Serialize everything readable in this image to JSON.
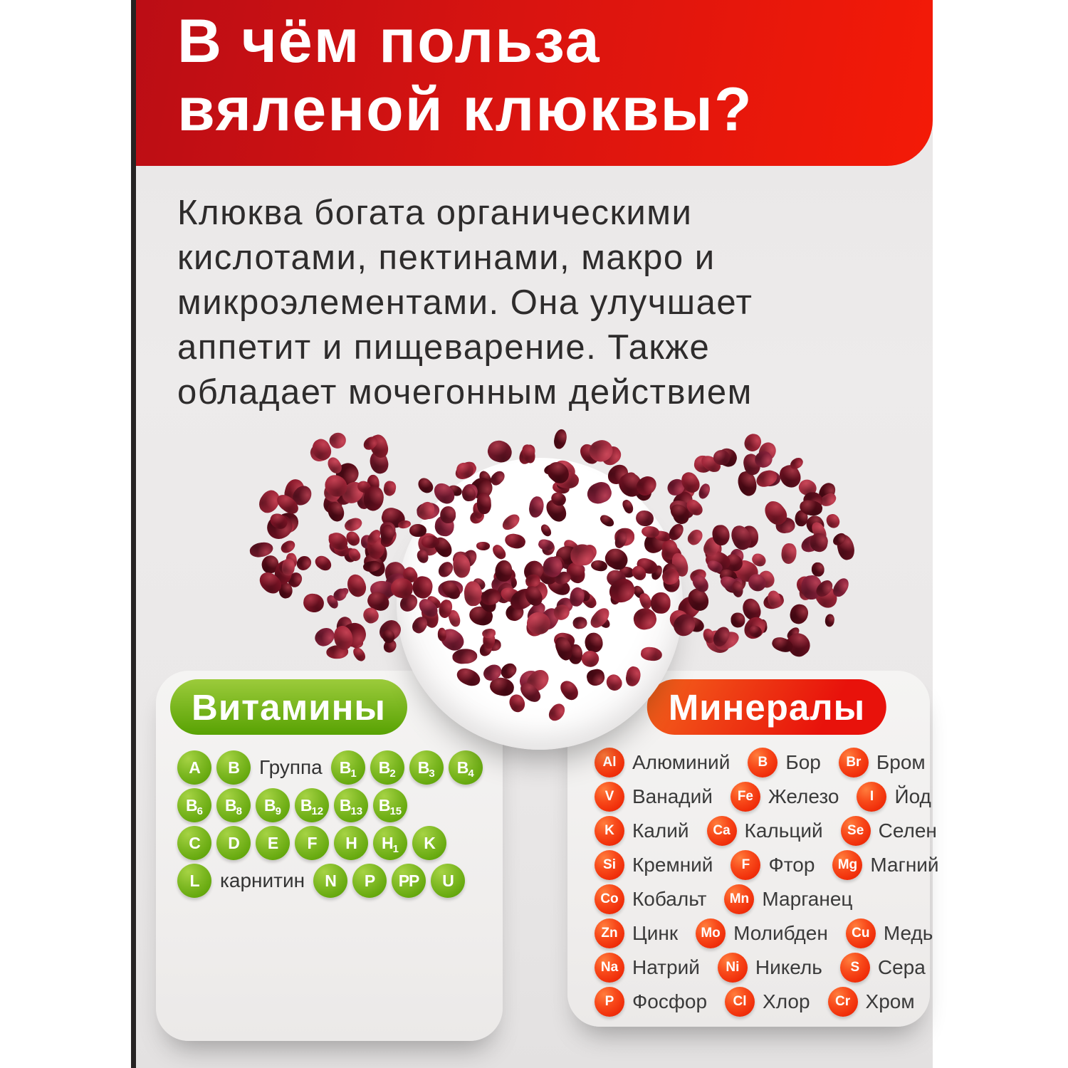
{
  "header": {
    "title_lines": [
      "В чём польза",
      "вяленой клюквы?"
    ]
  },
  "intro": {
    "lines": [
      "Клюква богата органическими",
      "кислотами, пектинами, макро и",
      "микроэлементами. Она улучшает",
      "аппетит и пищеварение. Также",
      "обладает мочегонным действием"
    ]
  },
  "vitamins": {
    "badge": "Витамины",
    "rows": [
      [
        {
          "circle": "A"
        },
        {
          "circle": "B"
        },
        {
          "text": "Группа"
        },
        {
          "circle": "B",
          "sub": "1"
        },
        {
          "circle": "B",
          "sub": "2"
        },
        {
          "circle": "B",
          "sub": "3"
        },
        {
          "circle": "B",
          "sub": "4"
        }
      ],
      [
        {
          "circle": "B",
          "sub": "6"
        },
        {
          "circle": "B",
          "sub": "8"
        },
        {
          "circle": "B",
          "sub": "9"
        },
        {
          "circle": "B",
          "sub": "12"
        },
        {
          "circle": "B",
          "sub": "13"
        },
        {
          "circle": "B",
          "sub": "15"
        }
      ],
      [
        {
          "circle": "C"
        },
        {
          "circle": "D"
        },
        {
          "circle": "E"
        },
        {
          "circle": "F"
        },
        {
          "circle": "H"
        },
        {
          "circle": "H",
          "sub": "1"
        },
        {
          "circle": "K"
        }
      ],
      [
        {
          "circle": "L"
        },
        {
          "text": "карнитин"
        },
        {
          "circle": "N"
        },
        {
          "circle": "P"
        },
        {
          "circle": "PP"
        },
        {
          "circle": "U"
        }
      ]
    ]
  },
  "minerals": {
    "badge": "Минералы",
    "rows": [
      [
        {
          "sym": "Al",
          "name": "Алюминий"
        },
        {
          "sym": "B",
          "name": "Бор"
        },
        {
          "sym": "Br",
          "name": "Бром"
        }
      ],
      [
        {
          "sym": "V",
          "name": "Ванадий"
        },
        {
          "sym": "Fe",
          "name": "Железо"
        },
        {
          "sym": "I",
          "name": "Йод"
        }
      ],
      [
        {
          "sym": "K",
          "name": "Калий"
        },
        {
          "sym": "Ca",
          "name": "Кальций"
        },
        {
          "sym": "Se",
          "name": "Селен"
        }
      ],
      [
        {
          "sym": "Si",
          "name": "Кремний"
        },
        {
          "sym": "F",
          "name": "Фтор"
        },
        {
          "sym": "Mg",
          "name": "Магний"
        }
      ],
      [
        {
          "sym": "Co",
          "name": "Кобальт"
        },
        {
          "sym": "Mn",
          "name": "Марганец"
        }
      ],
      [
        {
          "sym": "Zn",
          "name": "Цинк"
        },
        {
          "sym": "Mo",
          "name": "Молибден"
        },
        {
          "sym": "Cu",
          "name": "Медь"
        }
      ],
      [
        {
          "sym": "Na",
          "name": "Натрий"
        },
        {
          "sym": "Ni",
          "name": "Никель"
        },
        {
          "sym": "S",
          "name": "Сера"
        }
      ],
      [
        {
          "sym": "P",
          "name": "Фосфор"
        },
        {
          "sym": "Cl",
          "name": "Хлор"
        },
        {
          "sym": "Cr",
          "name": "Хром"
        }
      ]
    ]
  },
  "colors": {
    "banner_red_dark": "#bb0d15",
    "banner_red_bright": "#f41a07",
    "vitamin_green_light": "#9ccb3b",
    "vitamin_green_dark": "#58a203",
    "mineral_orange": "#f4641c",
    "mineral_red": "#e8120b",
    "card_bg": "#f2f1f0",
    "page_bg": "#e9e7e7",
    "text_dark": "#2e2c2c",
    "text_white": "#ffffff",
    "berry_dark_red": "#7d1426"
  }
}
